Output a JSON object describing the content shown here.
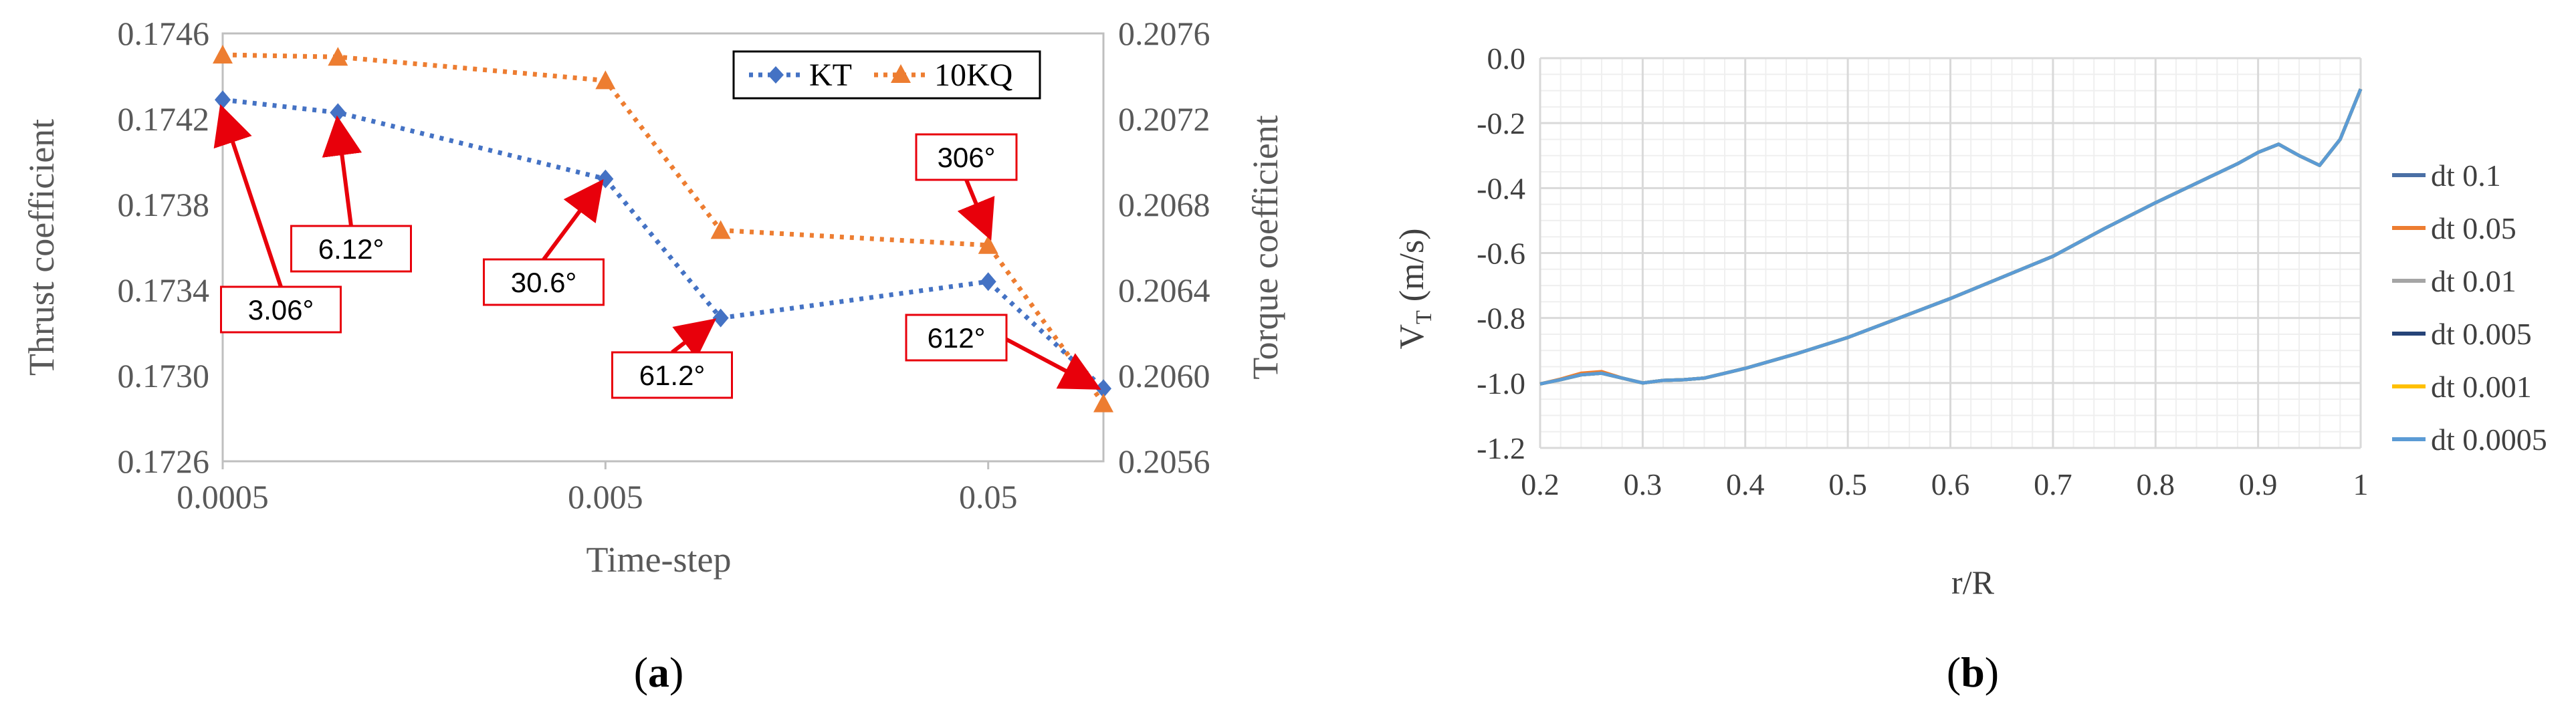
{
  "chart_data": [
    {
      "panel": "(a)",
      "panel_letter": "a",
      "type": "line",
      "xscale": "log",
      "xlabel": "Time-step",
      "ylabel": "Thrust coefficient",
      "y2label": "Torque coefficient",
      "x_ticks": [
        0.0005,
        0.005,
        0.05
      ],
      "x_tick_labels": [
        "0.0005",
        "0.005",
        "0.05"
      ],
      "xlim": [
        0.0005,
        0.1
      ],
      "ylim": [
        0.1726,
        0.1746
      ],
      "y_ticks": [
        "0.1726",
        "0.1730",
        "0.1734",
        "0.1738",
        "0.1742",
        "0.1746"
      ],
      "y2lim": [
        0.2056,
        0.2076
      ],
      "y2_ticks": [
        "0.2056",
        "0.2060",
        "0.2064",
        "0.2068",
        "0.2072",
        "0.2076"
      ],
      "x": [
        0.0005,
        0.001,
        0.005,
        0.01,
        0.05,
        0.1
      ],
      "series": [
        {
          "name": "KT",
          "axis": "left",
          "color": "#4472C4",
          "marker": "diamond",
          "values": [
            0.17429,
            0.17423,
            0.17392,
            0.17327,
            0.17344,
            0.17294
          ]
        },
        {
          "name": "10KQ",
          "axis": "right",
          "color": "#ED7D31",
          "marker": "triangle",
          "values": [
            0.2075,
            0.20749,
            0.20738,
            0.20668,
            0.20661,
            0.20587
          ]
        }
      ],
      "annotations": [
        {
          "text": "3.06°",
          "x": 0.0005
        },
        {
          "text": "6.12°",
          "x": 0.001
        },
        {
          "text": "30.6°",
          "x": 0.005
        },
        {
          "text": "61.2°",
          "x": 0.01
        },
        {
          "text": "306°",
          "x": 0.05
        },
        {
          "text": "612°",
          "x": 0.1
        }
      ],
      "annotation_color": "#E8000B"
    },
    {
      "panel": "(b)",
      "panel_letter": "b",
      "type": "line",
      "xlabel": "r/R",
      "ylabel": "V",
      "ylabel_sub": "T",
      "ylabel_unit": " (m/s)",
      "xlim": [
        0.2,
        1.0
      ],
      "x_ticks": [
        "0.2",
        "0.3",
        "0.4",
        "0.5",
        "0.6",
        "0.7",
        "0.8",
        "0.9",
        "1"
      ],
      "ylim": [
        -1.2,
        0.0
      ],
      "y_ticks": [
        "0.0",
        "-0.2",
        "-0.4",
        "-0.6",
        "-0.8",
        "-1.0",
        "-1.2"
      ],
      "x": [
        0.2,
        0.22,
        0.24,
        0.26,
        0.28,
        0.3,
        0.32,
        0.34,
        0.36,
        0.38,
        0.4,
        0.45,
        0.5,
        0.55,
        0.6,
        0.65,
        0.7,
        0.75,
        0.8,
        0.85,
        0.88,
        0.9,
        0.92,
        0.94,
        0.96,
        0.98,
        1.0
      ],
      "series": [
        {
          "name": "dt 0.1",
          "color": "#4A6FA5",
          "values": [
            -1.003,
            -0.99,
            -0.975,
            -0.97,
            -0.985,
            -1.0,
            -0.992,
            -0.99,
            -0.985,
            -0.97,
            -0.955,
            -0.91,
            -0.86,
            -0.8,
            -0.74,
            -0.675,
            -0.61,
            -0.525,
            -0.445,
            -0.37,
            -0.325,
            -0.29,
            -0.265,
            -0.3,
            -0.33,
            -0.25,
            -0.095
          ]
        },
        {
          "name": "dt 0.05",
          "color": "#ED7D31",
          "values": [
            -1.003,
            -0.988,
            -0.97,
            -0.965,
            -0.985,
            -1.0,
            -0.992,
            -0.99,
            -0.985,
            -0.97,
            -0.955,
            -0.91,
            -0.86,
            -0.8,
            -0.74,
            -0.675,
            -0.61,
            -0.525,
            -0.445,
            -0.37,
            -0.325,
            -0.29,
            -0.265,
            -0.3,
            -0.33,
            -0.25,
            -0.095
          ]
        },
        {
          "name": "dt 0.01",
          "color": "#A5A5A5",
          "values": [
            -1.003,
            -0.99,
            -0.975,
            -0.97,
            -0.985,
            -1.0,
            -0.992,
            -0.99,
            -0.985,
            -0.97,
            -0.955,
            -0.91,
            -0.86,
            -0.8,
            -0.74,
            -0.675,
            -0.61,
            -0.525,
            -0.445,
            -0.37,
            -0.325,
            -0.29,
            -0.265,
            -0.3,
            -0.33,
            -0.25,
            -0.095
          ]
        },
        {
          "name": "dt 0.005",
          "color": "#264478",
          "values": [
            -1.003,
            -0.99,
            -0.975,
            -0.97,
            -0.985,
            -1.0,
            -0.992,
            -0.99,
            -0.985,
            -0.97,
            -0.955,
            -0.91,
            -0.86,
            -0.8,
            -0.74,
            -0.675,
            -0.61,
            -0.525,
            -0.445,
            -0.37,
            -0.325,
            -0.29,
            -0.265,
            -0.3,
            -0.33,
            -0.25,
            -0.095
          ]
        },
        {
          "name": "dt 0.001",
          "color": "#FFC000",
          "values": [
            -1.003,
            -0.99,
            -0.975,
            -0.97,
            -0.985,
            -1.0,
            -0.992,
            -0.99,
            -0.985,
            -0.97,
            -0.955,
            -0.91,
            -0.86,
            -0.8,
            -0.74,
            -0.675,
            -0.61,
            -0.525,
            -0.445,
            -0.37,
            -0.325,
            -0.29,
            -0.265,
            -0.3,
            -0.33,
            -0.25,
            -0.095
          ]
        },
        {
          "name": "dt 0.0005",
          "color": "#5B9BD5",
          "values": [
            -1.003,
            -0.99,
            -0.975,
            -0.97,
            -0.985,
            -1.0,
            -0.992,
            -0.99,
            -0.985,
            -0.97,
            -0.955,
            -0.91,
            -0.86,
            -0.8,
            -0.74,
            -0.675,
            -0.61,
            -0.525,
            -0.445,
            -0.37,
            -0.325,
            -0.29,
            -0.265,
            -0.3,
            -0.33,
            -0.25,
            -0.095
          ]
        }
      ]
    }
  ]
}
